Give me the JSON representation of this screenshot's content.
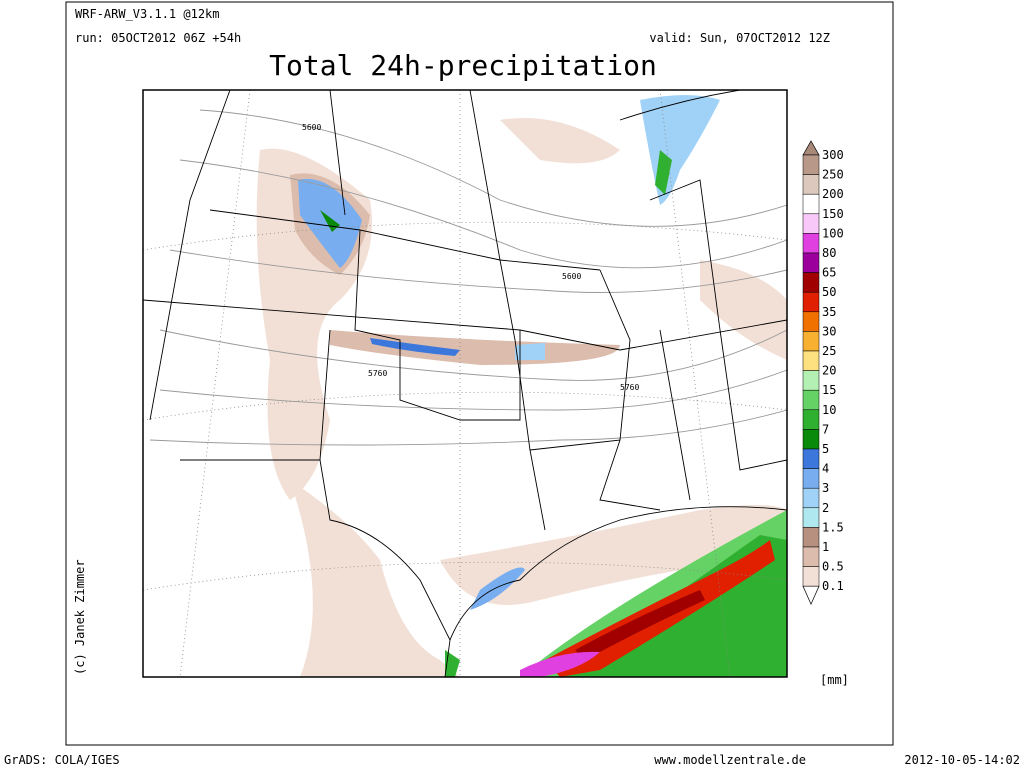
{
  "header": {
    "model": "WRF-ARW_V3.1.1 @12km",
    "run": "run: 05OCT2012 06Z +54h",
    "valid": "valid: Sun, 07OCT2012 12Z",
    "title": "Total 24h-precipitation"
  },
  "map": {
    "contour_labels": [
      "5600",
      "5600",
      "5760",
      "5760"
    ],
    "credit": "(c) Janek Zimmer"
  },
  "legend": {
    "levels": [
      300,
      250,
      200,
      150,
      100,
      80,
      65,
      50,
      35,
      30,
      25,
      20,
      15,
      10,
      7,
      5,
      4,
      3,
      2,
      1.5,
      1,
      0.5,
      0.1
    ],
    "colors": [
      "#a88878",
      "#b89888",
      "#dcc8bc",
      "#ffffff",
      "#f8c8f8",
      "#e040e0",
      "#9c009c",
      "#a00000",
      "#e02000",
      "#f07000",
      "#f8b030",
      "#fde080",
      "#b4f0b4",
      "#64d264",
      "#30b030",
      "#0a8a0a",
      "#3c78dc",
      "#78aef0",
      "#a0d2f8",
      "#b0e8f0",
      "#b89080",
      "#dcbcac",
      "#f2e0d6",
      "#ffffff"
    ],
    "unit": "[mm]"
  },
  "footer": {
    "left": "GrADS: COLA/IGES",
    "center": "www.modellzentrale.de",
    "right": "2012-10-05-14:02"
  }
}
